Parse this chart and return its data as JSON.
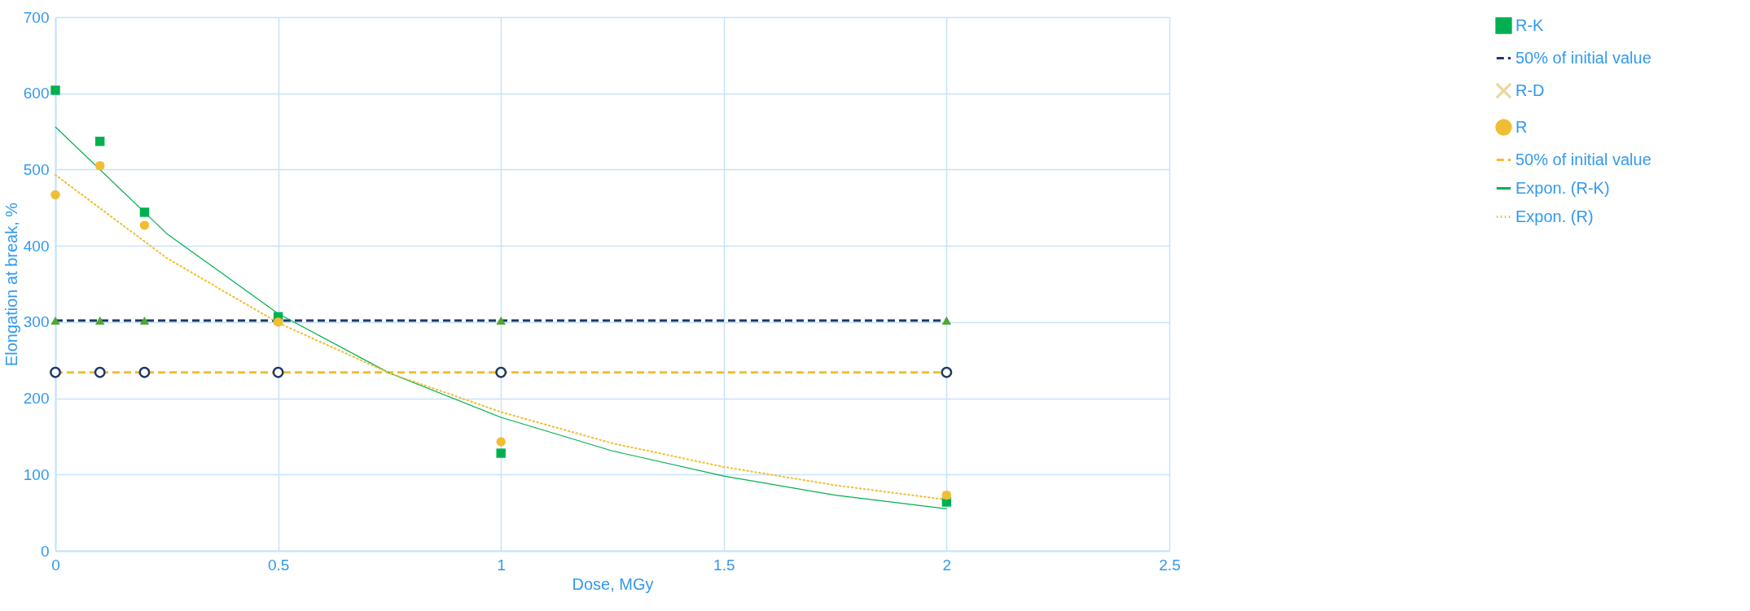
{
  "chart_data": {
    "type": "scatter",
    "xlabel": "Dose, MGy",
    "ylabel": "Elongation at break, %",
    "x": [
      0,
      0.1,
      0.2,
      0.5,
      1,
      2
    ],
    "series": [
      {
        "name": "R-K",
        "type": "scatter",
        "marker": "square",
        "color": "#00b050",
        "values": [
          604,
          537,
          444,
          307,
          128,
          64
        ]
      },
      {
        "name": "50% of initial value",
        "type": "line",
        "line_style": "dashed",
        "marker": "triangle",
        "color": "#1f3864",
        "colors": [
          "#4ea72e",
          "#4ea72e",
          "#4ea72e",
          "#4ea72e",
          "#4ea72e",
          "#4ea72e"
        ],
        "values": [
          302,
          302,
          302,
          302,
          302,
          302
        ]
      },
      {
        "name": "R-D",
        "type": "scatter",
        "marker": "cross",
        "color": "#ecd59a",
        "values": [
          null,
          505,
          null,
          null,
          null,
          73
        ]
      },
      {
        "name": "R",
        "type": "scatter",
        "marker": "circle",
        "color": "#f0be32",
        "values": [
          467,
          505,
          427,
          300,
          143,
          73
        ]
      },
      {
        "name": "50% of initial value",
        "type": "line",
        "line_style": "dashed",
        "marker": "circle",
        "color": "#f0be32",
        "colors": [
          "#1f3864",
          "#1f3864",
          "#1f3864",
          "#1f3864",
          "#1f3864",
          "#1f3864"
        ],
        "values": [
          234,
          234,
          234,
          234,
          234,
          234
        ]
      },
      {
        "name": "Expon. (R-K)",
        "type": "line",
        "line_style": "solid",
        "marker": "none",
        "color": "#00b050",
        "x": [
          0,
          0.25,
          0.5,
          0.75,
          1,
          1.25,
          1.5,
          1.75,
          2
        ],
        "values": [
          556,
          416,
          311,
          233,
          175,
          131,
          98,
          73,
          55
        ]
      },
      {
        "name": "Expon. (R)",
        "type": "line",
        "line_style": "dotted",
        "marker": "none",
        "color": "#f0be32",
        "x": [
          0,
          0.25,
          0.5,
          0.75,
          1,
          1.25,
          1.5,
          1.75,
          2
        ],
        "values": [
          493,
          384,
          299,
          233,
          182,
          141,
          110,
          86,
          67
        ]
      }
    ],
    "xlim": [
      0,
      2.5
    ],
    "xticks": [
      0,
      0.5,
      1,
      1.5,
      2,
      2.5
    ],
    "ylim": [
      0,
      700
    ],
    "yticks": [
      0,
      100,
      200,
      300,
      400,
      500,
      600,
      700
    ],
    "grid": true,
    "legend": "right"
  }
}
